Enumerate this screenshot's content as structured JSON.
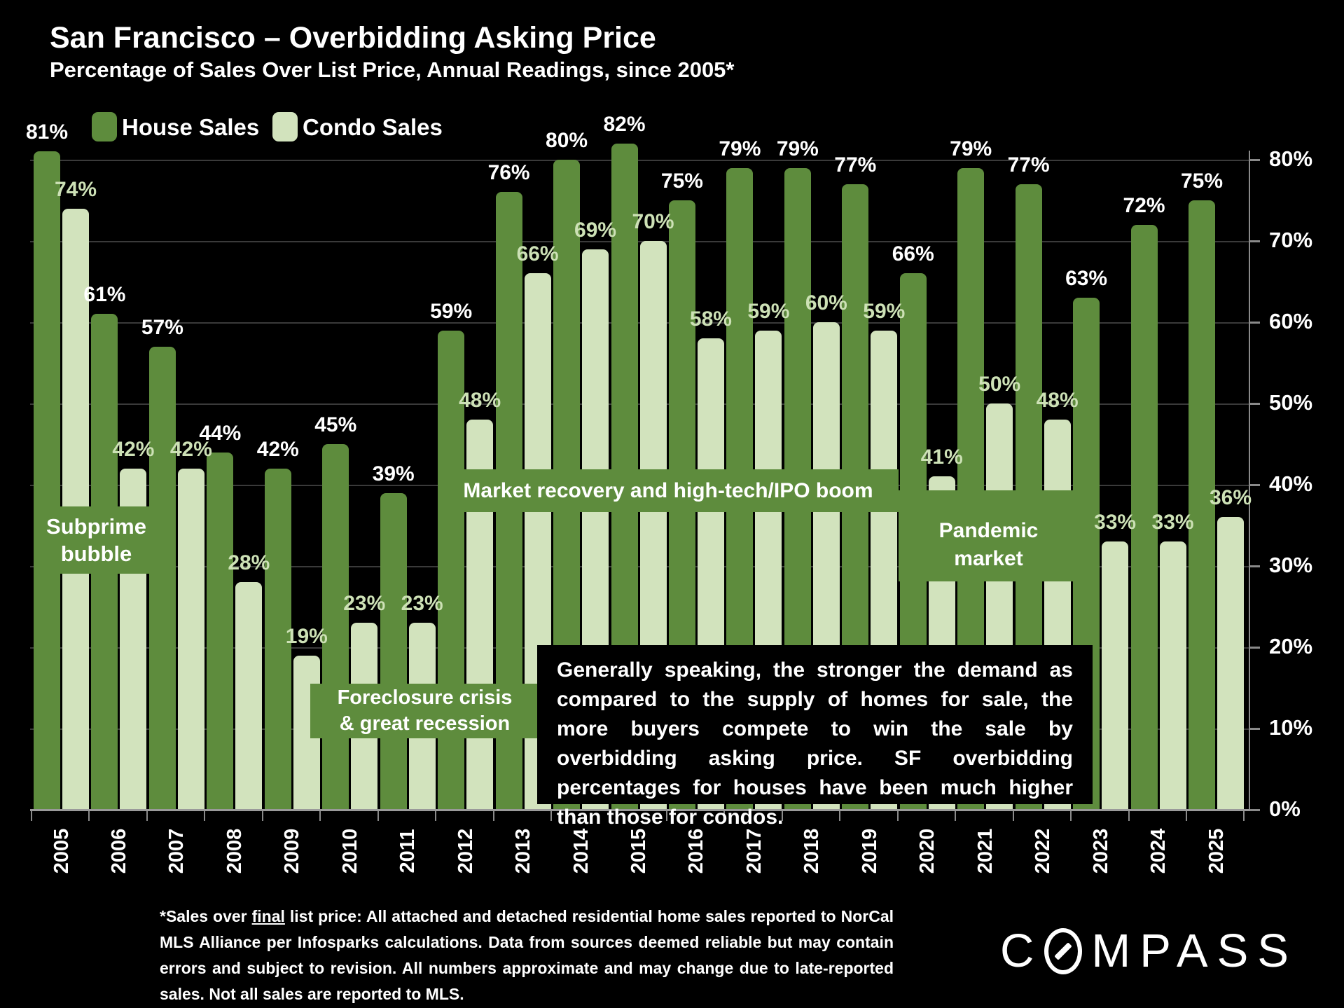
{
  "title": "San Francisco – Overbidding Asking Price",
  "subtitle": "Percentage of Sales Over List Price, Annual Readings, since 2005*",
  "legend": {
    "house_label": "House Sales",
    "condo_label": "Condo Sales"
  },
  "colors": {
    "background": "#000000",
    "house_bar": "#5e8c3d",
    "condo_bar": "#d2e3bd",
    "house_value_label": "#ffffff",
    "condo_value_label": "#cde1b6",
    "annotation_box": "#5e8c3d",
    "gridline": "#3a3a3a",
    "axis": "#8a8a8a",
    "text": "#ffffff"
  },
  "chart_data": {
    "type": "bar",
    "title": "San Francisco – Overbidding Asking Price",
    "subtitle": "Percentage of Sales Over List Price, Annual Readings, since 2005*",
    "categories": [
      "2005",
      "2006",
      "2007",
      "2008",
      "2009",
      "2010",
      "2011",
      "2012",
      "2013",
      "2014",
      "2015",
      "2016",
      "2017",
      "2018",
      "2019",
      "2020",
      "2021",
      "2022",
      "2023",
      "2024",
      "2025"
    ],
    "series": [
      {
        "name": "House Sales",
        "values": [
          81,
          61,
          57,
          44,
          42,
          45,
          39,
          59,
          76,
          80,
          82,
          75,
          79,
          79,
          77,
          66,
          79,
          77,
          63,
          72,
          75
        ]
      },
      {
        "name": "Condo Sales",
        "values": [
          74,
          42,
          42,
          28,
          19,
          23,
          23,
          48,
          66,
          69,
          70,
          58,
          59,
          60,
          59,
          41,
          50,
          48,
          33,
          33,
          36
        ]
      }
    ],
    "value_suffix": "%",
    "xlabel": "",
    "ylabel": "",
    "ylim": [
      0,
      85
    ],
    "y_ticks": [
      "0%",
      "10%",
      "20%",
      "30%",
      "40%",
      "50%",
      "60%",
      "70%",
      "80%"
    ],
    "grid": "horizontal",
    "legend_position": "top-left"
  },
  "annotations": {
    "subprime": {
      "line1": "Subprime",
      "line2": "bubble"
    },
    "foreclosure": {
      "line1": "Foreclosure crisis",
      "line2": "& great recession"
    },
    "market": {
      "text": "Market recovery and high-tech/IPO boom"
    },
    "pandemic": {
      "line1": "Pandemic",
      "line2": "market"
    }
  },
  "callout": {
    "text": "Generally speaking, the stronger the demand as compared to the supply of homes for sale, the more buyers compete to win the sale by overbidding asking price. SF overbidding percentages for houses have been much higher than those for condos."
  },
  "footnote": {
    "pre": "*Sales over ",
    "underline": "final",
    "rest": " list price: All attached and detached residential home sales reported to NorCal MLS Alliance per Infosparks calculations. Data from sources deemed reliable but may contain errors and subject to revision. All numbers approximate and may change due to late-reported sales. Not all sales are reported to MLS."
  },
  "logo": {
    "prefix": "C",
    "suffix": "MPASS"
  }
}
